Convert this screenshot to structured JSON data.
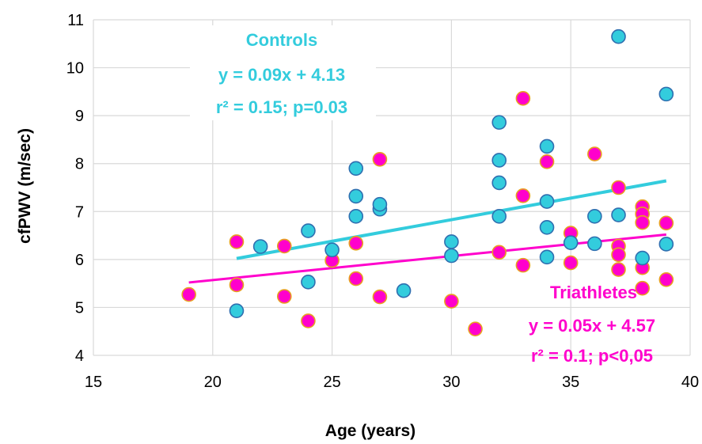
{
  "chart_data": {
    "type": "scatter",
    "xlabel": "Age (years)",
    "ylabel": "cfPWV (m/sec)",
    "xlim": [
      15,
      40
    ],
    "ylim": [
      4,
      11
    ],
    "xticks": [
      15,
      20,
      25,
      30,
      35,
      40
    ],
    "yticks": [
      4,
      5,
      6,
      7,
      8,
      9,
      10,
      11
    ],
    "grid": true,
    "series": [
      {
        "name": "Controls",
        "color": "#33CCDD",
        "edge_color": "#2F6FB0",
        "points": [
          [
            21,
            4.93
          ],
          [
            22,
            6.27
          ],
          [
            24,
            6.6
          ],
          [
            24,
            5.53
          ],
          [
            25,
            6.2
          ],
          [
            26,
            7.9
          ],
          [
            26,
            7.32
          ],
          [
            26,
            6.9
          ],
          [
            27,
            7.05
          ],
          [
            27,
            7.15
          ],
          [
            28,
            5.35
          ],
          [
            30,
            6.37
          ],
          [
            30,
            6.08
          ],
          [
            32,
            8.86
          ],
          [
            32,
            8.07
          ],
          [
            32,
            7.6
          ],
          [
            32,
            6.9
          ],
          [
            34,
            8.36
          ],
          [
            34,
            7.21
          ],
          [
            34,
            6.67
          ],
          [
            34,
            6.05
          ],
          [
            35,
            6.35
          ],
          [
            36,
            6.9
          ],
          [
            36,
            6.33
          ],
          [
            37,
            10.65
          ],
          [
            37,
            6.93
          ],
          [
            38,
            6.03
          ],
          [
            39,
            9.45
          ],
          [
            39,
            6.32
          ]
        ],
        "trendline": {
          "slope": 0.09,
          "intercept": 4.13,
          "x_range": [
            21,
            39
          ]
        },
        "annotation": [
          "Controls",
          "y = 0.09x + 4.13",
          "r² = 0.15; p=0.03"
        ]
      },
      {
        "name": "Triathletes",
        "color": "#FF00CC",
        "edge_color": "#E8A020",
        "points": [
          [
            19,
            5.27
          ],
          [
            21,
            6.37
          ],
          [
            21,
            5.47
          ],
          [
            23,
            6.28
          ],
          [
            23,
            5.23
          ],
          [
            24,
            4.72
          ],
          [
            25,
            5.98
          ],
          [
            26,
            6.34
          ],
          [
            26,
            5.6
          ],
          [
            27,
            8.09
          ],
          [
            27,
            5.22
          ],
          [
            30,
            5.13
          ],
          [
            31,
            4.55
          ],
          [
            32,
            6.15
          ],
          [
            33,
            9.36
          ],
          [
            33,
            7.33
          ],
          [
            33,
            5.88
          ],
          [
            34,
            8.04
          ],
          [
            35,
            6.55
          ],
          [
            35,
            5.93
          ],
          [
            36,
            8.2
          ],
          [
            37,
            7.5
          ],
          [
            37,
            6.28
          ],
          [
            37,
            6.1
          ],
          [
            37,
            5.79
          ],
          [
            38,
            7.1
          ],
          [
            38,
            6.95
          ],
          [
            38,
            6.77
          ],
          [
            38,
            5.83
          ],
          [
            38,
            5.4
          ],
          [
            39,
            6.76
          ],
          [
            39,
            5.58
          ]
        ],
        "trendline": {
          "slope": 0.05,
          "intercept": 4.57,
          "x_range": [
            19,
            39
          ]
        },
        "annotation": [
          "Triathletes",
          "y = 0.05x + 4.57",
          "r² = 0.1; p<0,05"
        ]
      }
    ]
  }
}
